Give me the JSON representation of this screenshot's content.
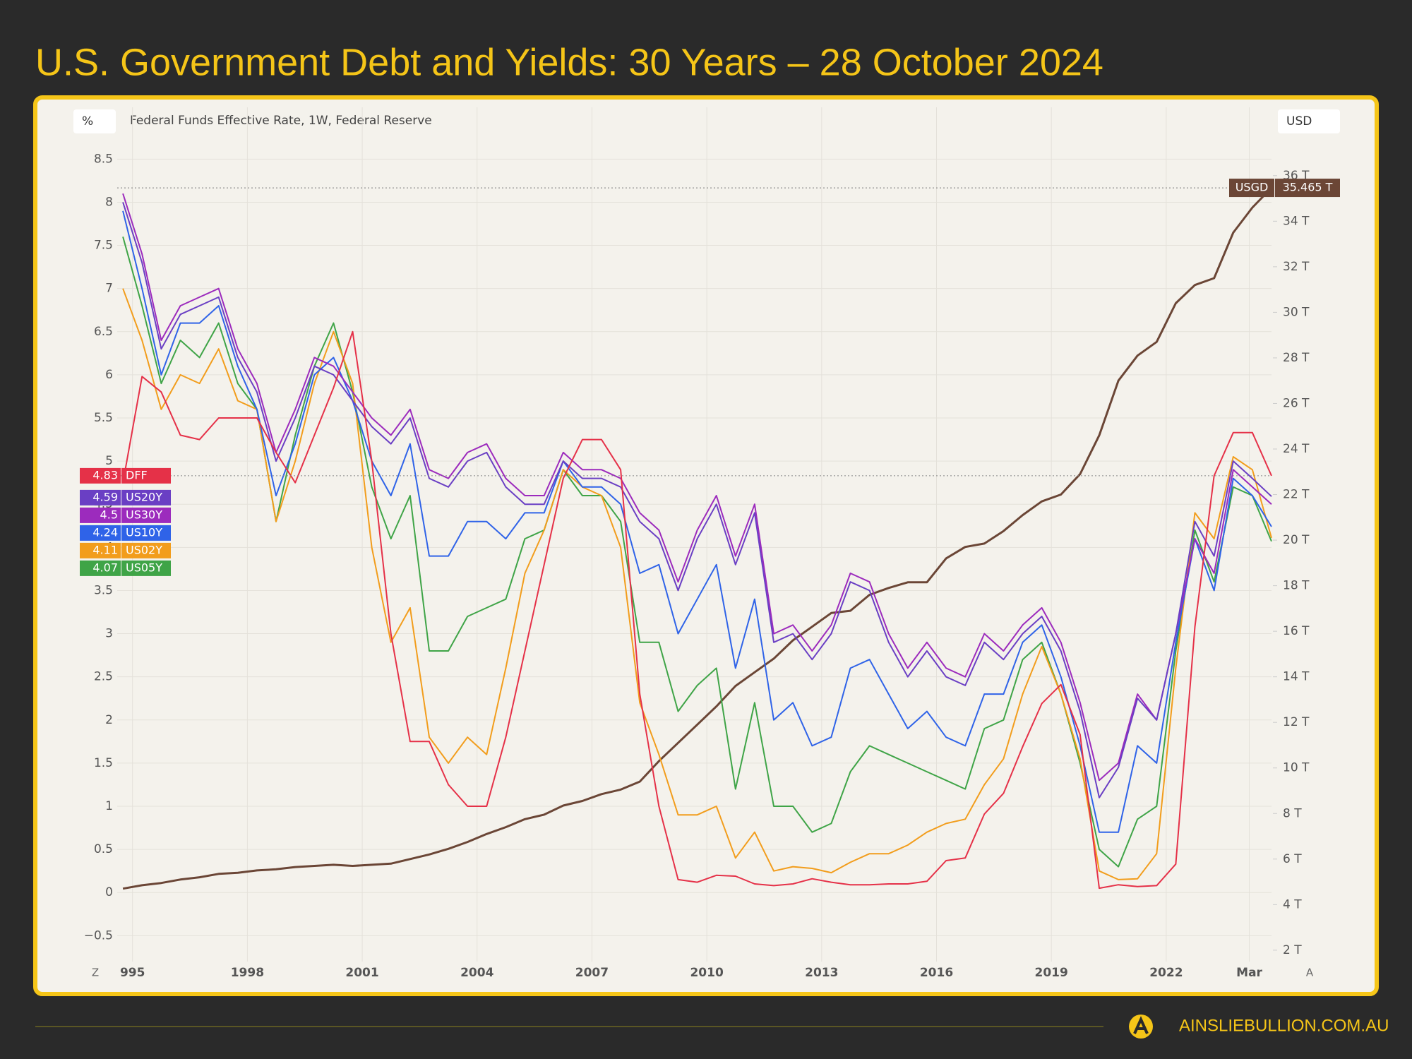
{
  "title": "U.S. Government Debt and Yields: 30 Years – 28 October 2024",
  "footer": "AINSLIEBULLION.COM.AU",
  "chart_data": {
    "type": "line",
    "y_unit": "%",
    "y2_unit": "USD",
    "subtitle": "Federal Funds Effective Rate, 1W, Federal Reserve",
    "buttons": [
      "Z",
      "A"
    ],
    "grid": true,
    "x": [
      1994.75,
      1995.25,
      1995.75,
      1996.25,
      1996.75,
      1997.25,
      1997.75,
      1998.25,
      1998.75,
      1999.25,
      1999.75,
      2000.25,
      2000.75,
      2001.25,
      2001.75,
      2002.25,
      2002.75,
      2003.25,
      2003.75,
      2004.25,
      2004.75,
      2005.25,
      2005.75,
      2006.25,
      2006.75,
      2007.25,
      2007.75,
      2008.25,
      2008.75,
      2009.25,
      2009.75,
      2010.25,
      2010.75,
      2011.25,
      2011.75,
      2012.25,
      2012.75,
      2013.25,
      2013.75,
      2014.25,
      2014.75,
      2015.25,
      2015.75,
      2016.25,
      2016.75,
      2017.25,
      2017.75,
      2018.25,
      2018.75,
      2019.25,
      2019.75,
      2020.25,
      2020.75,
      2021.25,
      2021.75,
      2022.25,
      2022.75,
      2023.25,
      2023.75,
      2024.25,
      2024.75
    ],
    "xlim": [
      1994.6,
      2024.75
    ],
    "xticks": [
      {
        "value": 1995,
        "label": "995"
      },
      1998,
      2001,
      2004,
      2007,
      2010,
      2013,
      2016,
      2019,
      2022,
      {
        "value": 2024.17,
        "label": "Mar"
      }
    ],
    "ylim": [
      -0.8,
      9.1
    ],
    "yticks": [
      {
        "value": -0.5,
        "label": "−0.5"
      },
      0,
      0.5,
      1,
      1.5,
      2,
      2.5,
      3,
      3.5,
      4,
      4.5,
      5,
      5.5,
      6,
      6.5,
      7,
      7.5,
      8,
      8.5
    ],
    "y2lim": [
      1.5,
      39.0
    ],
    "y2ticks": [
      {
        "value": 2,
        "label": "2 T"
      },
      {
        "value": 4,
        "label": "4 T"
      },
      {
        "value": 6,
        "label": "6 T"
      },
      {
        "value": 8,
        "label": "8 T"
      },
      {
        "value": 10,
        "label": "10 T"
      },
      {
        "value": 12,
        "label": "12 T"
      },
      {
        "value": 14,
        "label": "14 T"
      },
      {
        "value": 16,
        "label": "16 T"
      },
      {
        "value": 18,
        "label": "18 T"
      },
      {
        "value": 20,
        "label": "20 T"
      },
      {
        "value": 22,
        "label": "22 T"
      },
      {
        "value": 24,
        "label": "24 T"
      },
      {
        "value": 26,
        "label": "26 T"
      },
      {
        "value": 28,
        "label": "28 T"
      },
      {
        "value": 30,
        "label": "30 T"
      },
      {
        "value": 32,
        "label": "32 T"
      },
      {
        "value": 34,
        "label": "34 T"
      },
      {
        "value": 36,
        "label": "36 T"
      }
    ],
    "series": [
      {
        "name": "DFF",
        "color": "#e53148",
        "last": 4.83,
        "values": [
          4.75,
          5.98,
          5.8,
          5.3,
          5.25,
          5.5,
          5.5,
          5.5,
          5.1,
          4.75,
          5.3,
          5.85,
          6.5,
          5.0,
          3.0,
          1.75,
          1.75,
          1.25,
          1.0,
          1.0,
          1.8,
          2.8,
          3.8,
          4.8,
          5.25,
          5.25,
          4.9,
          2.3,
          1.0,
          0.15,
          0.12,
          0.2,
          0.19,
          0.1,
          0.08,
          0.1,
          0.16,
          0.12,
          0.09,
          0.09,
          0.1,
          0.1,
          0.13,
          0.37,
          0.4,
          0.91,
          1.15,
          1.69,
          2.19,
          2.41,
          1.83,
          0.05,
          0.09,
          0.07,
          0.08,
          0.33,
          3.08,
          4.83,
          5.33,
          5.33,
          4.83
        ]
      },
      {
        "name": "US20Y",
        "color": "#6a3fc4",
        "last": 4.59,
        "values": [
          8.0,
          7.3,
          6.3,
          6.7,
          6.8,
          6.9,
          6.2,
          5.8,
          5.0,
          5.5,
          6.1,
          6.0,
          5.7,
          5.4,
          5.2,
          5.5,
          4.8,
          4.7,
          5.0,
          5.1,
          4.7,
          4.5,
          4.5,
          5.0,
          4.8,
          4.8,
          4.7,
          4.3,
          4.1,
          3.5,
          4.1,
          4.5,
          3.8,
          4.4,
          2.9,
          3.0,
          2.7,
          3.0,
          3.6,
          3.5,
          2.9,
          2.5,
          2.8,
          2.5,
          2.4,
          2.9,
          2.7,
          3.0,
          3.2,
          2.8,
          2.1,
          1.1,
          1.45,
          2.25,
          2.0,
          3.0,
          4.3,
          3.9,
          5.0,
          4.8,
          4.59
        ]
      },
      {
        "name": "US30Y",
        "color": "#9c2bbd",
        "last": 4.5,
        "values": [
          8.1,
          7.4,
          6.4,
          6.8,
          6.9,
          7.0,
          6.3,
          5.9,
          5.1,
          5.6,
          6.2,
          6.1,
          5.8,
          5.5,
          5.3,
          5.6,
          4.9,
          4.8,
          5.1,
          5.2,
          4.8,
          4.6,
          4.6,
          5.1,
          4.9,
          4.9,
          4.8,
          4.4,
          4.2,
          3.6,
          4.2,
          4.6,
          3.9,
          4.5,
          3.0,
          3.1,
          2.8,
          3.1,
          3.7,
          3.6,
          3.0,
          2.6,
          2.9,
          2.6,
          2.5,
          3.0,
          2.8,
          3.1,
          3.3,
          2.9,
          2.2,
          1.3,
          1.5,
          2.3,
          2.0,
          3.0,
          4.1,
          3.7,
          4.9,
          4.7,
          4.5
        ]
      },
      {
        "name": "US10Y",
        "color": "#2f63e8",
        "last": 4.24,
        "values": [
          7.9,
          7.0,
          6.0,
          6.6,
          6.6,
          6.8,
          6.1,
          5.6,
          4.6,
          5.2,
          6.0,
          6.2,
          5.7,
          5.0,
          4.6,
          5.2,
          3.9,
          3.9,
          4.3,
          4.3,
          4.1,
          4.4,
          4.4,
          5.0,
          4.7,
          4.7,
          4.5,
          3.7,
          3.8,
          3.0,
          3.4,
          3.8,
          2.6,
          3.4,
          2.0,
          2.2,
          1.7,
          1.8,
          2.6,
          2.7,
          2.3,
          1.9,
          2.1,
          1.8,
          1.7,
          2.3,
          2.3,
          2.9,
          3.1,
          2.5,
          1.7,
          0.7,
          0.7,
          1.7,
          1.5,
          2.9,
          4.1,
          3.5,
          4.8,
          4.6,
          4.24
        ]
      },
      {
        "name": "US02Y",
        "color": "#f29d1c",
        "last": 4.11,
        "values": [
          7.0,
          6.4,
          5.6,
          6.0,
          5.9,
          6.3,
          5.7,
          5.6,
          4.3,
          5.0,
          5.9,
          6.5,
          5.9,
          4.0,
          2.9,
          3.3,
          1.8,
          1.5,
          1.8,
          1.6,
          2.6,
          3.7,
          4.2,
          4.9,
          4.7,
          4.6,
          4.0,
          2.2,
          1.6,
          0.9,
          0.9,
          1.0,
          0.4,
          0.7,
          0.25,
          0.3,
          0.28,
          0.23,
          0.35,
          0.45,
          0.45,
          0.55,
          0.7,
          0.8,
          0.85,
          1.25,
          1.55,
          2.3,
          2.85,
          2.3,
          1.55,
          0.25,
          0.15,
          0.16,
          0.45,
          2.6,
          4.4,
          4.1,
          5.05,
          4.9,
          4.11
        ]
      },
      {
        "name": "US05Y",
        "color": "#3fa447",
        "last": 4.07,
        "values": [
          7.6,
          6.8,
          5.9,
          6.4,
          6.2,
          6.6,
          5.9,
          5.6,
          4.3,
          5.3,
          6.1,
          6.6,
          5.8,
          4.7,
          4.1,
          4.6,
          2.8,
          2.8,
          3.2,
          3.3,
          3.4,
          4.1,
          4.2,
          4.9,
          4.6,
          4.6,
          4.3,
          2.9,
          2.9,
          2.1,
          2.4,
          2.6,
          1.2,
          2.2,
          1.0,
          1.0,
          0.7,
          0.8,
          1.4,
          1.7,
          1.6,
          1.5,
          1.4,
          1.3,
          1.2,
          1.9,
          2.0,
          2.7,
          2.9,
          2.3,
          1.5,
          0.5,
          0.3,
          0.85,
          1.0,
          2.8,
          4.2,
          3.6,
          4.7,
          4.6,
          4.07
        ]
      },
      {
        "name": "USGD",
        "color": "#6b4636",
        "axis": "y2",
        "last": {
          "value": 35.465,
          "label": "35.465 T"
        },
        "values": [
          4.7,
          4.85,
          4.95,
          5.1,
          5.2,
          5.35,
          5.4,
          5.5,
          5.55,
          5.65,
          5.7,
          5.75,
          5.7,
          5.75,
          5.8,
          6.0,
          6.2,
          6.45,
          6.75,
          7.1,
          7.4,
          7.75,
          7.95,
          8.35,
          8.55,
          8.85,
          9.05,
          9.4,
          10.3,
          11.1,
          11.9,
          12.7,
          13.6,
          14.2,
          14.8,
          15.6,
          16.2,
          16.8,
          16.9,
          17.6,
          17.9,
          18.15,
          18.15,
          19.2,
          19.7,
          19.85,
          20.4,
          21.1,
          21.7,
          22.0,
          22.9,
          24.6,
          27.0,
          28.1,
          28.7,
          30.4,
          31.2,
          31.5,
          33.5,
          34.6,
          35.465
        ]
      }
    ]
  }
}
